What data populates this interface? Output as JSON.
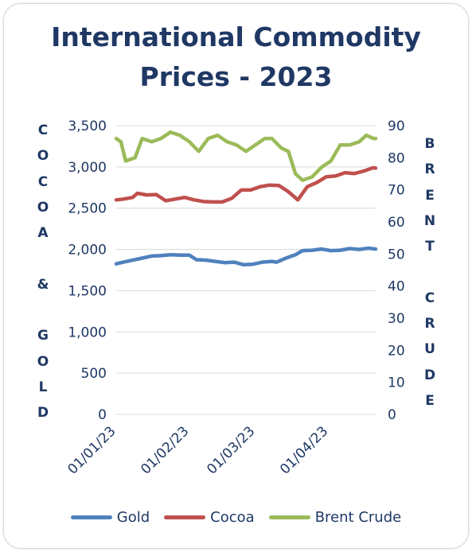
{
  "chart_data": {
    "type": "line",
    "title_lines": [
      "International Commodity",
      "Prices - 2023"
    ],
    "left_axis_label": "COCOA & GOLD",
    "right_axis_label": "BRENT CRUDE",
    "left_axis_letters": [
      "C",
      "O",
      "C",
      "O",
      "A",
      "",
      "&",
      "",
      "G",
      "O",
      "L",
      "D"
    ],
    "right_axis_letters": [
      "B",
      "R",
      "E",
      "N",
      "T",
      "",
      "C",
      "R",
      "U",
      "D",
      "E"
    ],
    "left_ticks": [
      "3,500",
      "3,000",
      "2,500",
      "2,000",
      "1,500",
      "1,000",
      "500",
      "0"
    ],
    "right_ticks": [
      "90",
      "80",
      "70",
      "60",
      "50",
      "40",
      "30",
      "20",
      "10",
      "0"
    ],
    "ylim_left": [
      0,
      3500
    ],
    "ylim_right": [
      0,
      90
    ],
    "x_ticks": [
      "01/01/23",
      "01/02/23",
      "01/03/23",
      "01/04/23"
    ],
    "x_range": [
      "2023-01-01",
      "2023-04-21"
    ],
    "grid": true,
    "legend_position": "bottom",
    "series": [
      {
        "name": "Gold",
        "axis": "left",
        "color": "#4f81bd",
        "x": [
          "2023-01-01",
          "2023-01-04",
          "2023-01-08",
          "2023-01-12",
          "2023-01-16",
          "2023-01-20",
          "2023-01-24",
          "2023-01-28",
          "2023-02-01",
          "2023-02-04",
          "2023-02-08",
          "2023-02-12",
          "2023-02-16",
          "2023-02-20",
          "2023-02-24",
          "2023-02-28",
          "2023-03-04",
          "2023-03-08",
          "2023-03-10",
          "2023-03-14",
          "2023-03-18",
          "2023-03-21",
          "2023-03-25",
          "2023-03-29",
          "2023-04-02",
          "2023-04-06",
          "2023-04-10",
          "2023-04-14",
          "2023-04-18",
          "2023-04-21"
        ],
        "values": [
          1825,
          1845,
          1870,
          1895,
          1920,
          1925,
          1935,
          1930,
          1930,
          1875,
          1870,
          1855,
          1840,
          1845,
          1815,
          1820,
          1845,
          1855,
          1845,
          1895,
          1935,
          1985,
          1990,
          2005,
          1985,
          1990,
          2010,
          2000,
          2015,
          2005
        ]
      },
      {
        "name": "Cocoa",
        "axis": "left",
        "color": "#c0504d",
        "x": [
          "2023-01-01",
          "2023-01-04",
          "2023-01-08",
          "2023-01-10",
          "2023-01-14",
          "2023-01-18",
          "2023-01-22",
          "2023-01-26",
          "2023-01-30",
          "2023-02-03",
          "2023-02-07",
          "2023-02-11",
          "2023-02-15",
          "2023-02-19",
          "2023-02-23",
          "2023-02-27",
          "2023-03-03",
          "2023-03-07",
          "2023-03-11",
          "2023-03-15",
          "2023-03-19",
          "2023-03-23",
          "2023-03-27",
          "2023-03-31",
          "2023-04-04",
          "2023-04-08",
          "2023-04-12",
          "2023-04-16",
          "2023-04-20",
          "2023-04-21"
        ],
        "values": [
          2600,
          2610,
          2630,
          2680,
          2660,
          2665,
          2590,
          2610,
          2630,
          2600,
          2580,
          2575,
          2575,
          2620,
          2720,
          2720,
          2760,
          2780,
          2775,
          2700,
          2600,
          2760,
          2810,
          2880,
          2890,
          2930,
          2920,
          2950,
          2990,
          2985
        ]
      },
      {
        "name": "Brent Crude",
        "axis": "right",
        "color": "#9bbb59",
        "x": [
          "2023-01-01",
          "2023-01-03",
          "2023-01-05",
          "2023-01-09",
          "2023-01-12",
          "2023-01-16",
          "2023-01-20",
          "2023-01-24",
          "2023-01-28",
          "2023-02-01",
          "2023-02-05",
          "2023-02-09",
          "2023-02-13",
          "2023-02-17",
          "2023-02-21",
          "2023-02-25",
          "2023-03-01",
          "2023-03-05",
          "2023-03-08",
          "2023-03-12",
          "2023-03-15",
          "2023-03-18",
          "2023-03-21",
          "2023-03-25",
          "2023-03-29",
          "2023-04-02",
          "2023-04-06",
          "2023-04-10",
          "2023-04-14",
          "2023-04-17",
          "2023-04-20",
          "2023-04-21"
        ],
        "values": [
          86,
          85,
          79,
          80,
          86,
          85,
          86,
          88,
          87,
          85,
          82,
          86,
          87,
          85,
          84,
          82,
          84,
          86,
          86,
          83,
          82,
          75,
          73,
          74,
          77,
          79,
          84,
          84,
          85,
          87,
          86,
          86
        ]
      }
    ]
  }
}
